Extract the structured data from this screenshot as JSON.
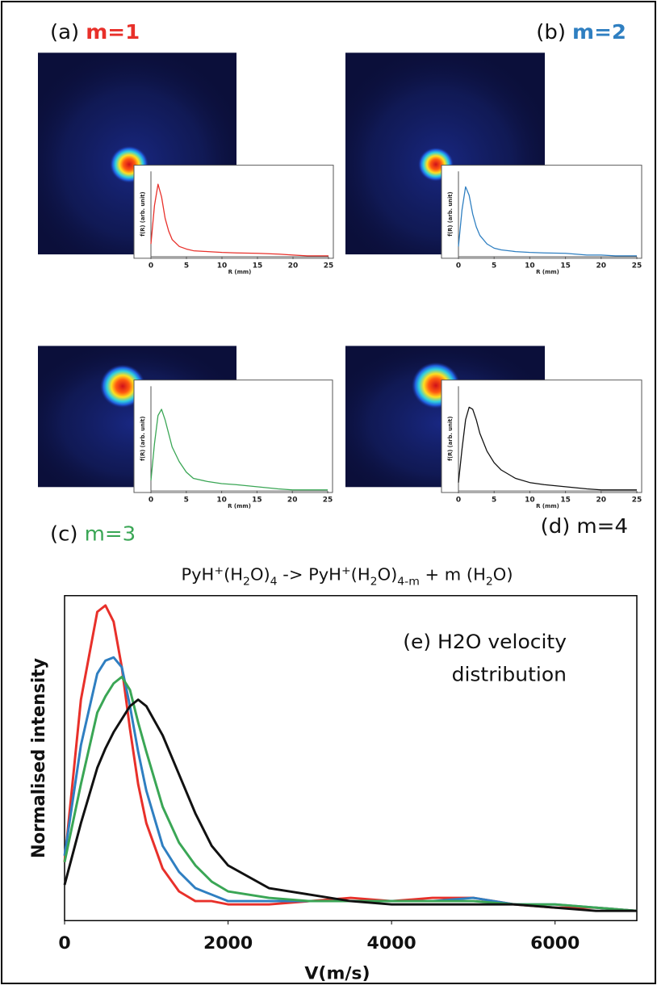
{
  "equation": [
    {
      "text": "PyH"
    },
    {
      "text": "+",
      "pos": "sup"
    },
    {
      "text": "(H"
    },
    {
      "text": "2",
      "pos": "sub"
    },
    {
      "text": "O)"
    },
    {
      "text": "4",
      "pos": "sub"
    },
    {
      "text": "  -> PyH"
    },
    {
      "text": "+",
      "pos": "sup"
    },
    {
      "text": "(H"
    },
    {
      "text": "2",
      "pos": "sub"
    },
    {
      "text": "O)"
    },
    {
      "text": "4-m",
      "pos": "sub"
    },
    {
      "text": " + m (H"
    },
    {
      "text": "2",
      "pos": "sub"
    },
    {
      "text": "O)"
    }
  ],
  "chart_data": [
    {
      "type": "line",
      "panel": "(a)",
      "title": "m=1",
      "title_color": "#e8302a",
      "title_bold": true,
      "xlabel": "R (mm)",
      "ylabel": "f(R) (arb. unit)",
      "x": [
        0,
        0.5,
        1,
        1.5,
        2,
        2.5,
        3,
        4,
        5,
        6,
        8,
        10,
        12,
        15,
        18,
        20,
        22,
        25
      ],
      "series": [
        {
          "color": "#e8302a",
          "values": [
            0.15,
            0.6,
            0.85,
            0.7,
            0.45,
            0.3,
            0.2,
            0.12,
            0.09,
            0.07,
            0.06,
            0.05,
            0.045,
            0.04,
            0.03,
            0.02,
            0.01,
            0.01
          ]
        }
      ],
      "xlim": [
        0,
        25
      ],
      "xticks": [
        0,
        5,
        10,
        15,
        20,
        25
      ],
      "ylim": [
        0,
        1
      ]
    },
    {
      "type": "line",
      "panel": "(b)",
      "title": "m=2",
      "title_color": "#2f7fc1",
      "title_bold": true,
      "xlabel": "R (mm)",
      "ylabel": "f(R) (arb. unit)",
      "x": [
        0,
        0.5,
        1,
        1.5,
        2,
        2.5,
        3,
        4,
        5,
        6,
        8,
        10,
        12,
        15,
        18,
        20,
        22,
        25
      ],
      "series": [
        {
          "color": "#2f7fc1",
          "values": [
            0.12,
            0.55,
            0.82,
            0.72,
            0.5,
            0.35,
            0.25,
            0.15,
            0.1,
            0.08,
            0.06,
            0.05,
            0.045,
            0.04,
            0.02,
            0.02,
            0.01,
            0.01
          ]
        }
      ],
      "xlim": [
        0,
        25
      ],
      "xticks": [
        0,
        5,
        10,
        15,
        20,
        25
      ],
      "ylim": [
        0,
        1
      ]
    },
    {
      "type": "line",
      "panel": "(c)",
      "title": "m=3",
      "title_color": "#3aa655",
      "title_bold": false,
      "xlabel": "R (mm)",
      "ylabel": "f(R) (arb. unit)",
      "x": [
        0,
        0.5,
        1,
        1.5,
        2,
        2.5,
        3,
        4,
        5,
        6,
        8,
        10,
        12,
        15,
        18,
        20,
        22,
        25
      ],
      "series": [
        {
          "color": "#3aa655",
          "values": [
            0.1,
            0.45,
            0.72,
            0.78,
            0.68,
            0.55,
            0.42,
            0.28,
            0.18,
            0.12,
            0.09,
            0.07,
            0.06,
            0.04,
            0.02,
            0.01,
            0.01,
            0.01
          ]
        }
      ],
      "xlim": [
        0,
        25
      ],
      "xticks": [
        0,
        5,
        10,
        15,
        20,
        25
      ],
      "ylim": [
        0,
        1
      ]
    },
    {
      "type": "line",
      "panel": "(d)",
      "title": "m=4",
      "title_color": "#111111",
      "title_bold": false,
      "xlabel": "R (mm)",
      "ylabel": "f(R) (arb. unit)",
      "x": [
        0,
        0.5,
        1,
        1.5,
        2,
        2.5,
        3,
        4,
        5,
        6,
        8,
        10,
        12,
        15,
        18,
        20,
        22,
        25
      ],
      "series": [
        {
          "color": "#111111",
          "values": [
            0.08,
            0.4,
            0.68,
            0.8,
            0.78,
            0.68,
            0.55,
            0.38,
            0.27,
            0.2,
            0.12,
            0.08,
            0.06,
            0.04,
            0.02,
            0.01,
            0.01,
            0.01
          ]
        }
      ],
      "xlim": [
        0,
        25
      ],
      "xticks": [
        0,
        5,
        10,
        15,
        20,
        25
      ],
      "ylim": [
        0,
        1
      ]
    },
    {
      "type": "line",
      "annotation": [
        "(e) H2O velocity",
        "distribution"
      ],
      "xlabel": "V(m/s)",
      "ylabel": "Normalised intensity",
      "x": [
        0,
        200,
        400,
        500,
        600,
        700,
        800,
        900,
        1000,
        1200,
        1400,
        1600,
        1800,
        2000,
        2500,
        3000,
        3500,
        4000,
        4500,
        5000,
        5500,
        6000,
        6500,
        7000
      ],
      "series": [
        {
          "color": "#e8302a",
          "values": [
            0.18,
            0.68,
            0.95,
            0.97,
            0.92,
            0.78,
            0.59,
            0.42,
            0.3,
            0.16,
            0.09,
            0.06,
            0.06,
            0.05,
            0.05,
            0.06,
            0.07,
            0.06,
            0.07,
            0.07,
            0.05,
            0.04,
            0.04,
            0.03
          ]
        },
        {
          "color": "#2f7fc1",
          "values": [
            0.2,
            0.54,
            0.76,
            0.8,
            0.81,
            0.78,
            0.66,
            0.52,
            0.4,
            0.23,
            0.15,
            0.1,
            0.08,
            0.06,
            0.06,
            0.06,
            0.06,
            0.06,
            0.06,
            0.07,
            0.05,
            0.05,
            0.04,
            0.03
          ]
        },
        {
          "color": "#3aa655",
          "values": [
            0.18,
            0.42,
            0.64,
            0.69,
            0.73,
            0.75,
            0.71,
            0.61,
            0.52,
            0.35,
            0.24,
            0.17,
            0.12,
            0.09,
            0.07,
            0.06,
            0.06,
            0.06,
            0.06,
            0.06,
            0.05,
            0.05,
            0.04,
            0.03
          ]
        },
        {
          "color": "#111111",
          "values": [
            0.11,
            0.3,
            0.47,
            0.53,
            0.58,
            0.62,
            0.66,
            0.68,
            0.66,
            0.57,
            0.45,
            0.33,
            0.23,
            0.17,
            0.1,
            0.08,
            0.06,
            0.05,
            0.05,
            0.05,
            0.05,
            0.04,
            0.03,
            0.03
          ]
        }
      ],
      "xlim": [
        0,
        7000
      ],
      "xticks": [
        0,
        2000,
        4000,
        6000
      ],
      "ylim": [
        0,
        1
      ]
    }
  ]
}
